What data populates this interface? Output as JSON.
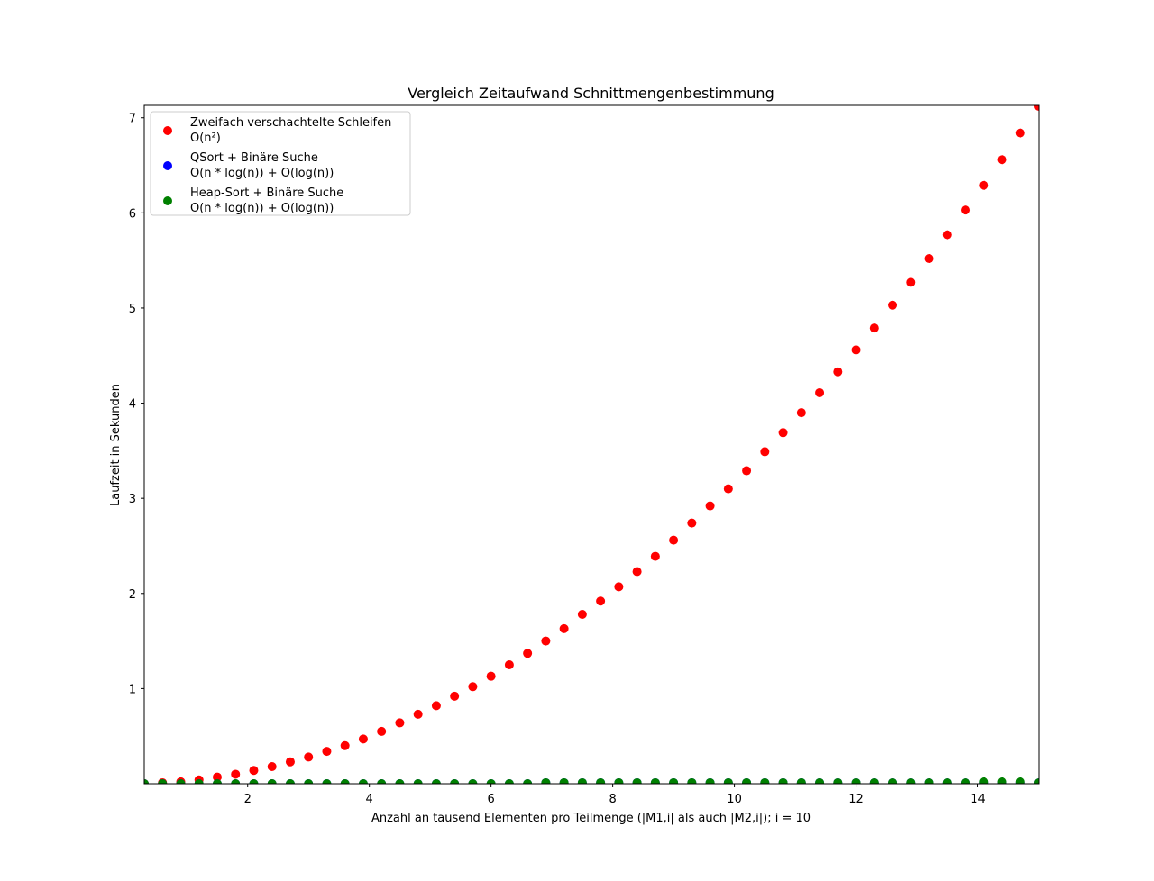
{
  "chart_data": {
    "type": "scatter",
    "title": "Vergleich Zeitaufwand Schnittmengenbestimmung",
    "xlabel": "Anzahl an tausend Elementen pro Teilmenge (|M1,i| als auch |M2,i|); i = 10",
    "ylabel": "Laufzeit in Sekunden",
    "xlim": [
      0.3,
      15.0
    ],
    "ylim": [
      0.0,
      7.13
    ],
    "xticks": [
      2,
      4,
      6,
      8,
      10,
      12,
      14
    ],
    "yticks": [
      1,
      2,
      3,
      4,
      5,
      6,
      7
    ],
    "grid": false,
    "legend_position": "upper-left",
    "x": [
      0.3,
      0.6,
      0.9,
      1.2,
      1.5,
      1.8,
      2.1,
      2.4,
      2.7,
      3.0,
      3.3,
      3.6,
      3.9,
      4.2,
      4.5,
      4.8,
      5.1,
      5.4,
      5.7,
      6.0,
      6.3,
      6.6,
      6.9,
      7.2,
      7.5,
      7.8,
      8.1,
      8.4,
      8.7,
      9.0,
      9.3,
      9.6,
      9.9,
      10.2,
      10.5,
      10.8,
      11.1,
      11.4,
      11.7,
      12.0,
      12.3,
      12.6,
      12.9,
      13.2,
      13.5,
      13.8,
      14.1,
      14.4,
      14.7,
      15.0
    ],
    "series": [
      {
        "name": "Zweifach verschachtelte Schleifen\nO(n²)",
        "color": "#ff0000",
        "values": [
          0.0,
          0.01,
          0.02,
          0.04,
          0.07,
          0.1,
          0.14,
          0.18,
          0.23,
          0.28,
          0.34,
          0.4,
          0.47,
          0.55,
          0.64,
          0.73,
          0.82,
          0.92,
          1.02,
          1.13,
          1.25,
          1.37,
          1.5,
          1.63,
          1.78,
          1.92,
          2.07,
          2.23,
          2.39,
          2.56,
          2.74,
          2.92,
          3.1,
          3.29,
          3.49,
          3.69,
          3.9,
          4.11,
          4.33,
          4.56,
          4.79,
          5.03,
          5.27,
          5.52,
          5.77,
          6.03,
          6.29,
          6.56,
          6.84,
          7.12
        ]
      },
      {
        "name": "QSort + Binäre Suche\nO(n * log(n)) + O(log(n))",
        "color": "#0000ff",
        "values": [
          0.0,
          0.0,
          0.0,
          0.0,
          0.0,
          0.0,
          0.0,
          0.0,
          0.0,
          0.0,
          0.0,
          0.0,
          0.0,
          0.0,
          0.0,
          0.0,
          0.0,
          0.0,
          0.0,
          0.0,
          0.0,
          0.0,
          0.01,
          0.01,
          0.01,
          0.01,
          0.01,
          0.01,
          0.01,
          0.01,
          0.01,
          0.01,
          0.01,
          0.01,
          0.01,
          0.01,
          0.01,
          0.01,
          0.01,
          0.01,
          0.01,
          0.01,
          0.01,
          0.01,
          0.01,
          0.01,
          0.01,
          0.01,
          0.01,
          0.01
        ]
      },
      {
        "name": "Heap-Sort + Binäre Suche\nO(n * log(n)) + O(log(n))",
        "color": "#008000",
        "values": [
          0.0,
          0.0,
          0.0,
          0.0,
          0.0,
          0.0,
          0.0,
          0.0,
          0.0,
          0.0,
          0.0,
          0.0,
          0.0,
          0.0,
          0.0,
          0.0,
          0.0,
          0.0,
          0.0,
          0.0,
          0.0,
          0.0,
          0.01,
          0.01,
          0.01,
          0.01,
          0.01,
          0.01,
          0.01,
          0.01,
          0.01,
          0.01,
          0.01,
          0.01,
          0.01,
          0.01,
          0.01,
          0.01,
          0.01,
          0.01,
          0.01,
          0.01,
          0.01,
          0.01,
          0.01,
          0.01,
          0.02,
          0.02,
          0.02,
          0.01
        ]
      }
    ]
  }
}
